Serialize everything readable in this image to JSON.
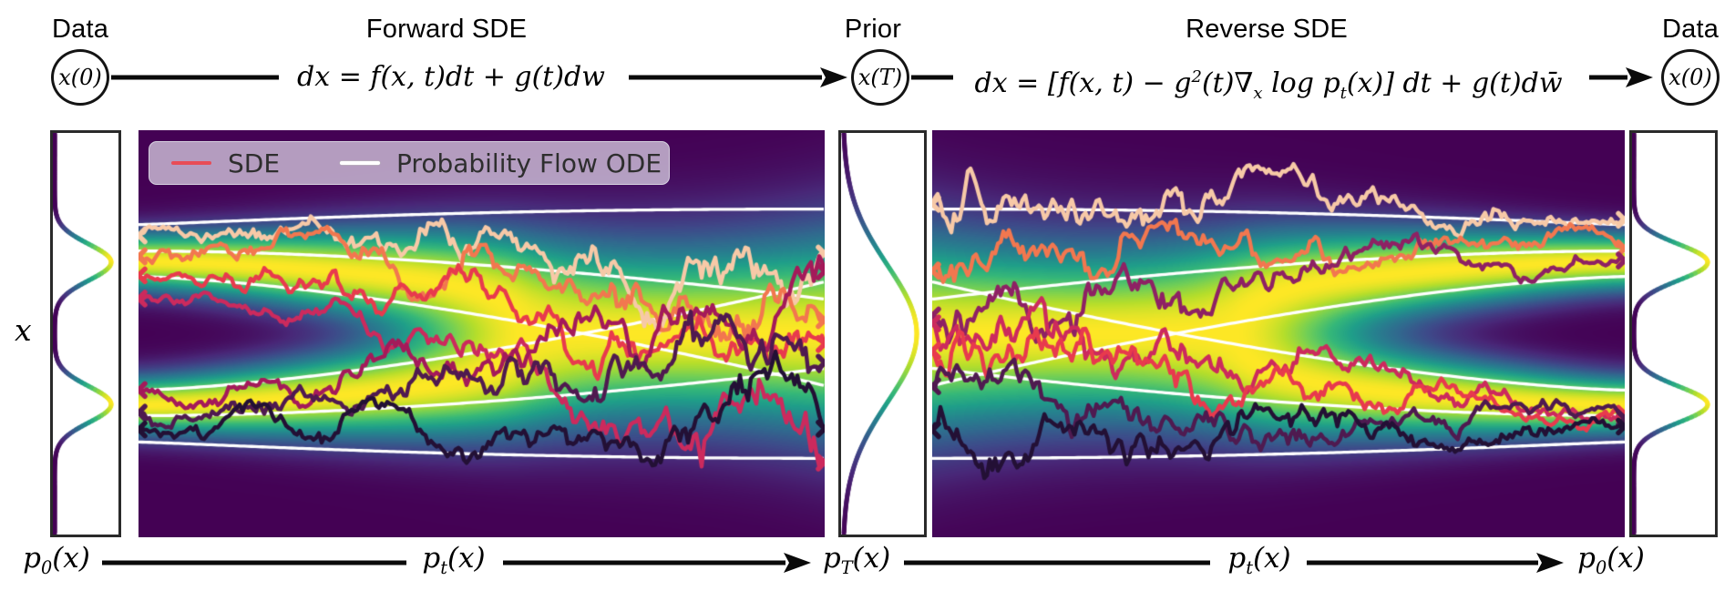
{
  "header": {
    "data_left": {
      "label": "Data",
      "node": "x(0)"
    },
    "forward": {
      "label": "Forward SDE",
      "equation": "dx = f(x, t)dt + g(t)dw"
    },
    "prior": {
      "label": "Prior",
      "node": "x(T)"
    },
    "reverse": {
      "label": "Reverse SDE",
      "eq": {
        "p1": "dx = [f(x, t) − g",
        "s1": "2",
        "p2": "(t)∇",
        "s2": "x",
        "p3": " log p",
        "s3": "t",
        "p4": "(x)] dt + g(t)dw̄"
      }
    },
    "data_right": {
      "label": "Data",
      "node": "x(0)"
    }
  },
  "axis": {
    "y_label": "x"
  },
  "legend": {
    "entries": [
      {
        "label": "SDE",
        "color": "#e84c56"
      },
      {
        "label": "Probability Flow ODE",
        "color": "#ffffff"
      }
    ]
  },
  "footer": {
    "p0_left": {
      "base": "p",
      "sub": "0",
      "rest": "(x)"
    },
    "pt_forward": {
      "base": "p",
      "sub": "t",
      "rest": "(x)"
    },
    "pT": {
      "base": "p",
      "sub": "T",
      "rest": "(x)"
    },
    "pt_reverse": {
      "base": "p",
      "sub": "t",
      "rest": "(x)"
    },
    "p0_right": {
      "base": "p",
      "sub": "0",
      "rest": "(x)"
    }
  },
  "chart_data": {
    "type": "heatmap",
    "colormap": "viridis",
    "colormap_stops": [
      "#440154",
      "#482878",
      "#3e4989",
      "#31688e",
      "#26828e",
      "#1f9e89",
      "#35b779",
      "#6ece58",
      "#b5de2b",
      "#fde725"
    ],
    "y_axis_label": "x",
    "data_modes_y": [
      0.322,
      0.676
    ],
    "data_mode_std": 0.05,
    "prior_mean_y": 0.5,
    "prior_std": 0.17,
    "marginal_mode_std": 0.045,
    "marginals": {
      "left": "bimodal p0(x)",
      "middle": "unimodal gaussian pT(x)",
      "right": "bimodal p0(x)"
    },
    "ode_line_color": "#ffffff",
    "ode_lines_z": [
      [
        -1.8,
        -0.5,
        0.75
      ],
      [
        -0.75,
        0.5,
        1.8
      ]
    ],
    "sde_forward": [
      {
        "color": "#f7c9a7",
        "mode": 0,
        "z": -1.15,
        "seed": 11
      },
      {
        "color": "#f2774f",
        "mode": 0,
        "z": -0.25,
        "seed": 22
      },
      {
        "color": "#e83a4d",
        "mode": 0,
        "z": 0.7,
        "seed": 33
      },
      {
        "color": "#cc2a5d",
        "mode": 0,
        "z": 1.8,
        "seed": 44
      },
      {
        "color": "#a41a5a",
        "mode": 1,
        "z": -0.85,
        "seed": 55
      },
      {
        "color": "#4f1a50",
        "mode": 1,
        "z": 0.15,
        "seed": 66
      },
      {
        "color": "#231035",
        "mode": 1,
        "z": 1.05,
        "seed": 77
      }
    ],
    "sde_reverse": [
      {
        "color": "#f7c9a7",
        "mode": 0,
        "z": -1.9,
        "seed": 101
      },
      {
        "color": "#f2774f",
        "mode": 0,
        "z": -0.85,
        "seed": 112
      },
      {
        "color": "#8e2164",
        "mode": 0,
        "z": -0.3,
        "seed": 123
      },
      {
        "color": "#cc2a5d",
        "mode": 1,
        "z": -0.1,
        "seed": 134
      },
      {
        "color": "#e83a4d",
        "mode": 1,
        "z": 0.35,
        "seed": 145
      },
      {
        "color": "#4f1a50",
        "mode": 1,
        "z": 0.8,
        "seed": 156
      },
      {
        "color": "#231035",
        "mode": 1,
        "z": 1.35,
        "seed": 167
      }
    ]
  }
}
